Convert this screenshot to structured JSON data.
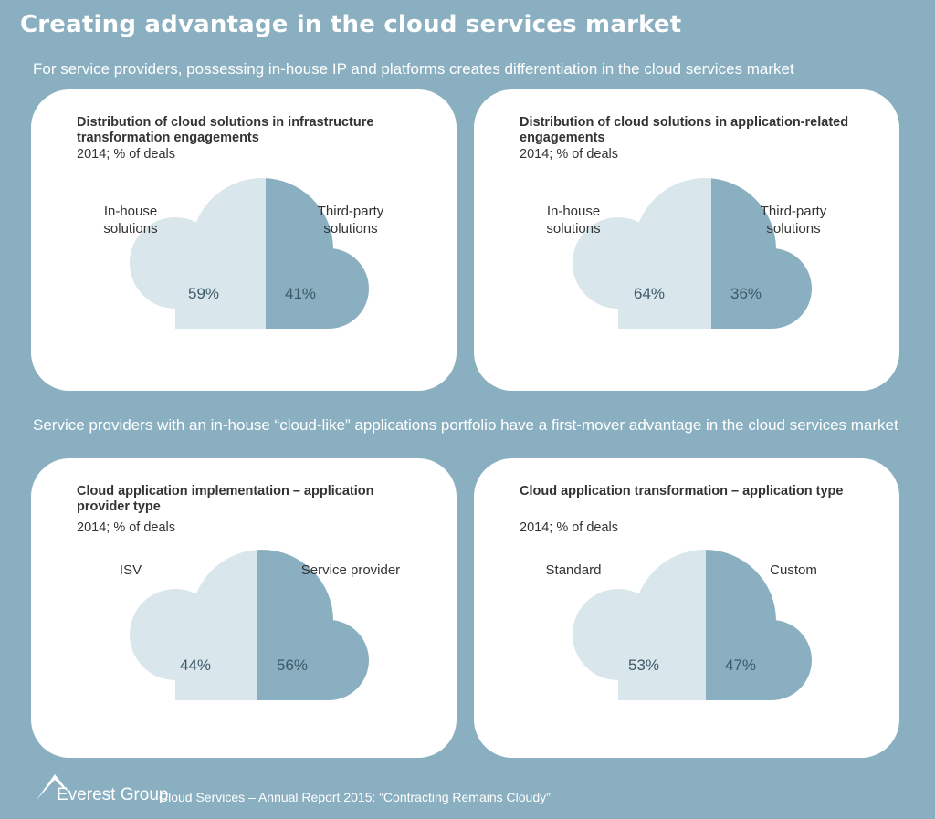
{
  "header": {
    "title": "Creating advantage in the cloud services market",
    "subtitle_1": "For service providers, possessing in-house IP and platforms creates differentiation in the cloud services market",
    "subtitle_2": "Service providers with an in-house “cloud-like” applications portfolio have a first-mover advantage in the cloud services market"
  },
  "colors": {
    "left_fill": "#d9e6ec",
    "right_fill": "#8aafc0"
  },
  "chart_data": [
    {
      "type": "pie",
      "title": "Distribution of cloud solutions in infrastructure transformation engagements",
      "subtitle": "2014; % of deals",
      "categories": [
        "In-house solutions",
        "Third-party solutions"
      ],
      "values": [
        59,
        41
      ],
      "value_labels": [
        "59%",
        "41%"
      ],
      "label_lines": [
        [
          "In-house",
          "solutions"
        ],
        [
          "Third-party",
          "solutions"
        ]
      ]
    },
    {
      "type": "pie",
      "title": "Distribution of cloud solutions in application-related engagements",
      "subtitle": "2014; % of deals",
      "categories": [
        "In-house solutions",
        "Third-party solutions"
      ],
      "values": [
        64,
        36
      ],
      "value_labels": [
        "64%",
        "36%"
      ],
      "label_lines": [
        [
          "In-house",
          "solutions"
        ],
        [
          "Third-party",
          "solutions"
        ]
      ]
    },
    {
      "type": "pie",
      "title": "Cloud application implementation – application provider type",
      "subtitle": "2014; % of deals",
      "categories": [
        "ISV",
        "Service provider"
      ],
      "values": [
        44,
        56
      ],
      "value_labels": [
        "44%",
        "56%"
      ],
      "label_lines": [
        [
          "ISV"
        ],
        [
          "Service provider"
        ]
      ]
    },
    {
      "type": "pie",
      "title": "Cloud application transformation – application type",
      "subtitle": "2014; % of deals",
      "categories": [
        "Standard",
        "Custom"
      ],
      "values": [
        53,
        47
      ],
      "value_labels": [
        "53%",
        "47%"
      ],
      "label_lines": [
        [
          "Standard"
        ],
        [
          "Custom"
        ]
      ]
    }
  ],
  "footer": {
    "logo": "Everest Group",
    "source": "Cloud Services – Annual Report 2015: “Contracting Remains Cloudy”"
  }
}
